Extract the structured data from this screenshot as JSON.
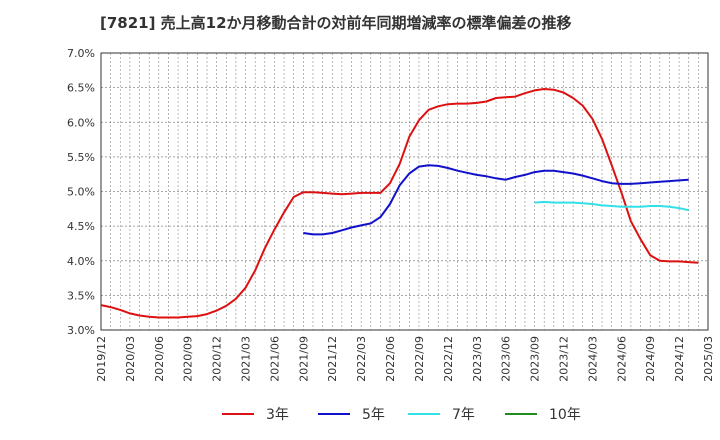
{
  "chart_data": {
    "type": "line",
    "title": "[7821]  売上高12か月移動合計の対前年同期増減率の標準偏差の推移",
    "xlabel": "",
    "ylabel": "",
    "ylim": [
      3.0,
      7.0
    ],
    "yticks": [
      "3.0%",
      "3.5%",
      "4.0%",
      "4.5%",
      "5.0%",
      "5.5%",
      "6.0%",
      "6.5%",
      "7.0%"
    ],
    "x_start": "2019-12",
    "x_end": "2025-03",
    "xticks": [
      "2019/12",
      "2020/03",
      "2020/06",
      "2020/09",
      "2020/12",
      "2021/03",
      "2021/06",
      "2021/09",
      "2021/12",
      "2022/03",
      "2022/06",
      "2022/09",
      "2022/12",
      "2023/03",
      "2023/06",
      "2023/09",
      "2023/12",
      "2024/03",
      "2024/06",
      "2024/09",
      "2024/12",
      "2025/03"
    ],
    "grid": true,
    "legend_position": "bottom",
    "series": [
      {
        "name": "3年",
        "color": "#dd1111",
        "start": "2019-12",
        "values": [
          3.36,
          3.33,
          3.29,
          3.24,
          3.21,
          3.19,
          3.18,
          3.18,
          3.18,
          3.19,
          3.2,
          3.23,
          3.28,
          3.35,
          3.45,
          3.61,
          3.86,
          4.18,
          4.45,
          4.7,
          4.92,
          4.99,
          4.99,
          4.98,
          4.97,
          4.96,
          4.97,
          4.98,
          4.98,
          4.98,
          5.12,
          5.4,
          5.79,
          6.03,
          6.18,
          6.23,
          6.26,
          6.27,
          6.27,
          6.28,
          6.3,
          6.35,
          6.36,
          6.37,
          6.42,
          6.46,
          6.48,
          6.47,
          6.43,
          6.35,
          6.24,
          6.05,
          5.76,
          5.38,
          4.99,
          4.57,
          4.31,
          4.08,
          4.0,
          3.99,
          3.99,
          3.98,
          3.97
        ]
      },
      {
        "name": "5年",
        "color": "#1111cc",
        "start": "2021-09",
        "values": [
          4.4,
          4.38,
          4.38,
          4.4,
          4.44,
          4.48,
          4.51,
          4.54,
          4.63,
          4.82,
          5.09,
          5.26,
          5.36,
          5.38,
          5.37,
          5.34,
          5.3,
          5.27,
          5.24,
          5.22,
          5.19,
          5.17,
          5.21,
          5.24,
          5.28,
          5.3,
          5.3,
          5.28,
          5.26,
          5.23,
          5.19,
          5.15,
          5.12,
          5.11,
          5.11,
          5.12,
          5.13,
          5.14,
          5.15,
          5.16,
          5.17
        ]
      },
      {
        "name": "7年",
        "color": "#33e0e8",
        "start": "2023-09",
        "values": [
          4.84,
          4.85,
          4.84,
          4.84,
          4.84,
          4.83,
          4.82,
          4.8,
          4.79,
          4.78,
          4.78,
          4.78,
          4.79,
          4.79,
          4.78,
          4.76,
          4.73
        ]
      },
      {
        "name": "10年",
        "color": "#228b22",
        "start": "2023-09",
        "values": []
      }
    ]
  }
}
